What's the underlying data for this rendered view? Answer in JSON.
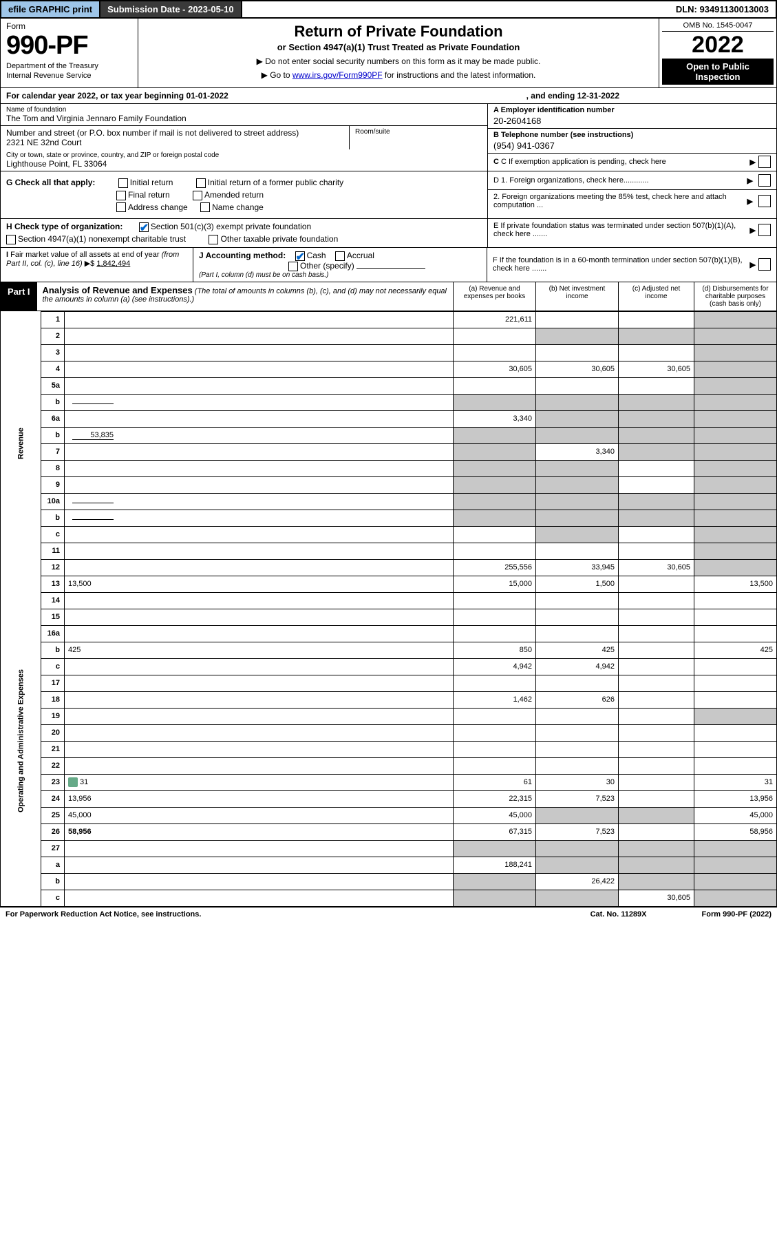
{
  "topbar": {
    "efile": "efile GRAPHIC print",
    "submission_label": "Submission Date - 2023-05-10",
    "dln": "DLN: 93491130013003"
  },
  "header": {
    "form_word": "Form",
    "form_number": "990-PF",
    "dept": "Department of the Treasury",
    "irs": "Internal Revenue Service",
    "title": "Return of Private Foundation",
    "subtitle": "or Section 4947(a)(1) Trust Treated as Private Foundation",
    "note1": "▶ Do not enter social security numbers on this form as it may be made public.",
    "note2_pre": "▶ Go to ",
    "note2_link": "www.irs.gov/Form990PF",
    "note2_post": " for instructions and the latest information.",
    "omb": "OMB No. 1545-0047",
    "year": "2022",
    "open": "Open to Public Inspection"
  },
  "calendar": {
    "text": "For calendar year 2022, or tax year beginning 01-01-2022",
    "ending": ", and ending 12-31-2022"
  },
  "identity": {
    "name_label": "Name of foundation",
    "name": "The Tom and Virginia Jennaro Family Foundation",
    "addr_label": "Number and street (or P.O. box number if mail is not delivered to street address)",
    "addr": "2321 NE 32nd Court",
    "room_label": "Room/suite",
    "city_label": "City or town, state or province, country, and ZIP or foreign postal code",
    "city": "Lighthouse Point, FL  33064",
    "ein_label": "A Employer identification number",
    "ein": "20-2604168",
    "phone_label": "B Telephone number (see instructions)",
    "phone": "(954) 941-0367",
    "c_label": "C If exemption application is pending, check here"
  },
  "g": {
    "label": "G Check all that apply:",
    "initial": "Initial return",
    "initial_former": "Initial return of a former public charity",
    "final": "Final return",
    "amended": "Amended return",
    "address": "Address change",
    "name_change": "Name change"
  },
  "d": {
    "d1": "D 1. Foreign organizations, check here............",
    "d2": "2. Foreign organizations meeting the 85% test, check here and attach computation ..."
  },
  "h": {
    "label": "H Check type of organization:",
    "opt1": "Section 501(c)(3) exempt private foundation",
    "opt2": "Section 4947(a)(1) nonexempt charitable trust",
    "opt3": "Other taxable private foundation"
  },
  "e": "E If private foundation status was terminated under section 507(b)(1)(A), check here .......",
  "i": {
    "label": "I Fair market value of all assets at end of year (from Part II, col. (c), line 16) ▶$",
    "value": "1,842,494"
  },
  "j": {
    "label": "J Accounting method:",
    "cash": "Cash",
    "accrual": "Accrual",
    "other": "Other (specify)",
    "note": "(Part I, column (d) must be on cash basis.)"
  },
  "f": "F If the foundation is in a 60-month termination under section 507(b)(1)(B), check here .......",
  "part1": {
    "label": "Part I",
    "title": "Analysis of Revenue and Expenses",
    "note": "(The total of amounts in columns (b), (c), and (d) may not necessarily equal the amounts in column (a) (see instructions).)",
    "col_a": "(a) Revenue and expenses per books",
    "col_b": "(b) Net investment income",
    "col_c": "(c) Adjusted net income",
    "col_d": "(d) Disbursements for charitable purposes (cash basis only)"
  },
  "sides": {
    "revenue": "Revenue",
    "expenses": "Operating and Administrative Expenses"
  },
  "rows": [
    {
      "n": "1",
      "d": "",
      "a": "221,611",
      "b": "",
      "c": "",
      "d_grey": true
    },
    {
      "n": "2",
      "d": "",
      "a": "",
      "b": "",
      "c": "",
      "all_grey_bcd": true
    },
    {
      "n": "3",
      "d": "",
      "a": "",
      "b": "",
      "c": "",
      "d_grey": true
    },
    {
      "n": "4",
      "d": "",
      "a": "30,605",
      "b": "30,605",
      "c": "30,605",
      "d_grey": true
    },
    {
      "n": "5a",
      "d": "",
      "a": "",
      "b": "",
      "c": "",
      "d_grey": true
    },
    {
      "n": "b",
      "d": "",
      "inline": "",
      "a": "",
      "b": "",
      "c": "",
      "all_grey": true
    },
    {
      "n": "6a",
      "d": "",
      "a": "3,340",
      "b": "",
      "c": "",
      "bcd_grey": true
    },
    {
      "n": "b",
      "d": "",
      "inline": "53,835",
      "a": "",
      "b": "",
      "c": "",
      "all_grey": true
    },
    {
      "n": "7",
      "d": "",
      "a": "",
      "b": "3,340",
      "c": "",
      "a_grey": true,
      "cd_grey": true
    },
    {
      "n": "8",
      "d": "",
      "a": "",
      "b": "",
      "c": "",
      "ab_grey": true,
      "d_grey": true
    },
    {
      "n": "9",
      "d": "",
      "a": "",
      "b": "",
      "c": "",
      "ab_grey": true,
      "d_grey": true
    },
    {
      "n": "10a",
      "d": "",
      "inline": "",
      "a": "",
      "b": "",
      "c": "",
      "all_grey": true
    },
    {
      "n": "b",
      "d": "",
      "inline": "",
      "a": "",
      "b": "",
      "c": "",
      "all_grey": true
    },
    {
      "n": "c",
      "d": "",
      "a": "",
      "b": "",
      "c": "",
      "b_grey": true,
      "d_grey": true
    },
    {
      "n": "11",
      "d": "",
      "a": "",
      "b": "",
      "c": "",
      "d_grey": true
    },
    {
      "n": "12",
      "d": "",
      "a": "255,556",
      "b": "33,945",
      "c": "30,605",
      "d_grey": true,
      "bold": true
    },
    {
      "n": "13",
      "d": "13,500",
      "a": "15,000",
      "b": "1,500",
      "c": ""
    },
    {
      "n": "14",
      "d": "",
      "a": "",
      "b": "",
      "c": ""
    },
    {
      "n": "15",
      "d": "",
      "a": "",
      "b": "",
      "c": ""
    },
    {
      "n": "16a",
      "d": "",
      "a": "",
      "b": "",
      "c": ""
    },
    {
      "n": "b",
      "d": "425",
      "a": "850",
      "b": "425",
      "c": ""
    },
    {
      "n": "c",
      "d": "",
      "a": "4,942",
      "b": "4,942",
      "c": ""
    },
    {
      "n": "17",
      "d": "",
      "a": "",
      "b": "",
      "c": ""
    },
    {
      "n": "18",
      "d": "",
      "a": "1,462",
      "b": "626",
      "c": ""
    },
    {
      "n": "19",
      "d": "",
      "a": "",
      "b": "",
      "c": "",
      "d_grey": true
    },
    {
      "n": "20",
      "d": "",
      "a": "",
      "b": "",
      "c": ""
    },
    {
      "n": "21",
      "d": "",
      "a": "",
      "b": "",
      "c": ""
    },
    {
      "n": "22",
      "d": "",
      "a": "",
      "b": "",
      "c": ""
    },
    {
      "n": "23",
      "d": "31",
      "icon": true,
      "a": "61",
      "b": "30",
      "c": ""
    },
    {
      "n": "24",
      "d": "13,956",
      "a": "22,315",
      "b": "7,523",
      "c": ""
    },
    {
      "n": "25",
      "d": "45,000",
      "a": "45,000",
      "b": "",
      "c": "",
      "bc_grey": true
    },
    {
      "n": "26",
      "d": "58,956",
      "a": "67,315",
      "b": "7,523",
      "c": "",
      "bold": true
    },
    {
      "n": "27",
      "d": "",
      "a": "",
      "b": "",
      "c": "",
      "all_grey": true
    },
    {
      "n": "a",
      "d": "",
      "a": "188,241",
      "b": "",
      "c": "",
      "bcd_grey": true
    },
    {
      "n": "b",
      "d": "",
      "a": "",
      "b": "26,422",
      "c": "",
      "a_grey": true,
      "cd_grey": true
    },
    {
      "n": "c",
      "d": "",
      "a": "",
      "b": "",
      "c": "30,605",
      "ab_grey": true,
      "d_grey": true
    }
  ],
  "footer": {
    "left": "For Paperwork Reduction Act Notice, see instructions.",
    "mid": "Cat. No. 11289X",
    "right": "Form 990-PF (2022)"
  },
  "colors": {
    "topbar_btn": "#9ec5e8",
    "topbar_dark": "#3a3a3a",
    "link": "#0000cc",
    "check": "#0066cc",
    "grey_cell": "#c8c8c8"
  }
}
